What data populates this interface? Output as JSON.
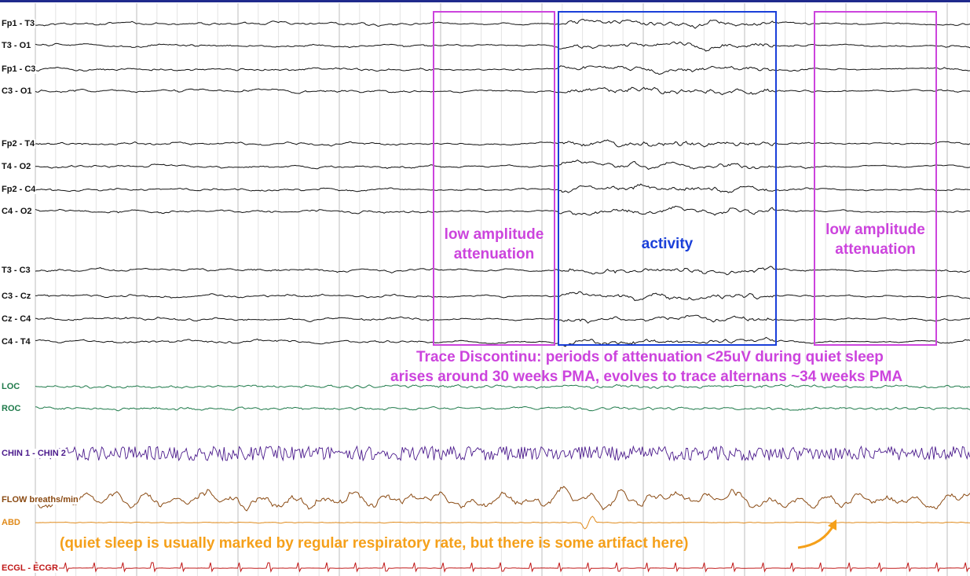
{
  "channels": [
    {
      "label": "Fp1 - T3",
      "color": "#111111"
    },
    {
      "label": "T3 - O1",
      "color": "#111111"
    },
    {
      "label": "Fp1 - C3",
      "color": "#111111"
    },
    {
      "label": "C3 - O1",
      "color": "#111111"
    },
    {
      "label": "Fp2 - T4",
      "color": "#111111"
    },
    {
      "label": "T4 - O2",
      "color": "#111111"
    },
    {
      "label": "Fp2 - C4",
      "color": "#111111"
    },
    {
      "label": "C4 - O2",
      "color": "#111111"
    },
    {
      "label": "T3 - C3",
      "color": "#111111"
    },
    {
      "label": "C3 - Cz",
      "color": "#111111"
    },
    {
      "label": "Cz - C4",
      "color": "#111111"
    },
    {
      "label": "C4 - T4",
      "color": "#111111"
    },
    {
      "label": "LOC",
      "color": "#1e7a4a"
    },
    {
      "label": "ROC",
      "color": "#1e7a4a"
    },
    {
      "label": "CHIN 1 - CHIN 2",
      "color": "#4b1a8c"
    },
    {
      "label": "FLOW breaths/min",
      "color": "#8a4a12"
    },
    {
      "label": "ABD",
      "color": "#e08a1a"
    },
    {
      "label": "ECGL - ECGR",
      "color": "#c01818"
    }
  ],
  "annotations": {
    "attenuation_1": {
      "line1": "low amplitude",
      "line2": "attenuation",
      "color": "#cc44dd"
    },
    "activity": {
      "label": "activity",
      "color": "#1a3fd9"
    },
    "attenuation_2": {
      "line1": "low amplitude",
      "line2": "attenuation",
      "color": "#cc44dd"
    },
    "trace_caption_1": "Trace Discontinu: periods of attenuation <25uV during quiet sleep",
    "trace_caption_2": "arises around 30 weeks PMA, evolves to trace alternans ~34 weeks PMA",
    "trace_caption_color": "#cc44dd",
    "respiratory_note": "(quiet sleep is usually marked by regular respiratory rate, but there is some artifact here)",
    "respiratory_note_color": "#f5a01a"
  }
}
